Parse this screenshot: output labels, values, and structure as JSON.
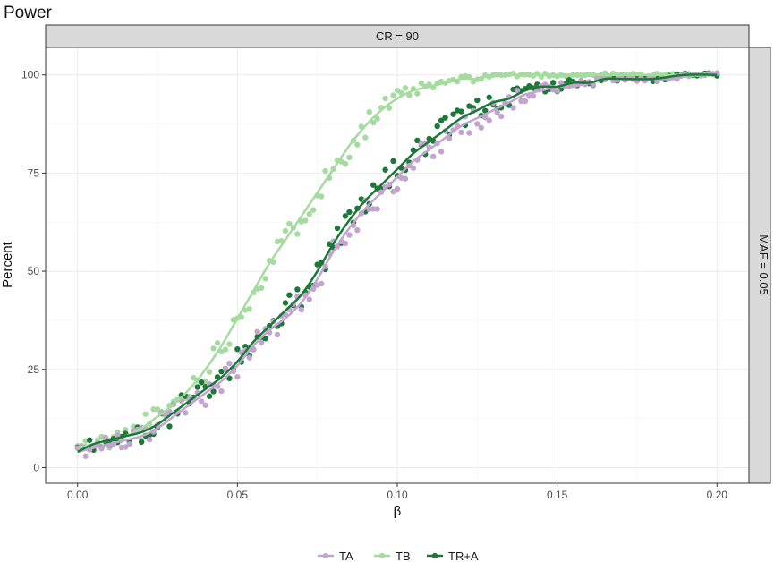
{
  "chart_data": {
    "type": "scatter",
    "title": "Power",
    "facet_top": "CR = 90",
    "facet_right": "MAF = 0.05",
    "xlabel": "β",
    "ylabel": "Percent",
    "xlim": [
      -0.01,
      0.21
    ],
    "ylim": [
      -4,
      107
    ],
    "x_ticks": [
      0.0,
      0.05,
      0.1,
      0.15,
      0.2
    ],
    "x_tick_labels": [
      "0.00",
      "0.05",
      "0.10",
      "0.15",
      "0.20"
    ],
    "y_ticks": [
      0,
      25,
      50,
      75,
      100
    ],
    "y_tick_labels": [
      "0",
      "25",
      "50",
      "75",
      "100"
    ],
    "grid": true,
    "legend_position": "bottom",
    "series": [
      {
        "name": "TA",
        "color": "#c2a5cf",
        "points": [
          [
            0.0,
            4
          ],
          [
            0.005,
            5
          ],
          [
            0.01,
            6
          ],
          [
            0.015,
            7
          ],
          [
            0.02,
            8
          ],
          [
            0.025,
            10
          ],
          [
            0.03,
            13
          ],
          [
            0.035,
            16
          ],
          [
            0.04,
            19
          ],
          [
            0.045,
            22
          ],
          [
            0.05,
            26
          ],
          [
            0.055,
            31
          ],
          [
            0.06,
            35
          ],
          [
            0.065,
            38
          ],
          [
            0.07,
            42
          ],
          [
            0.075,
            48
          ],
          [
            0.08,
            55
          ],
          [
            0.085,
            61
          ],
          [
            0.09,
            66
          ],
          [
            0.095,
            70
          ],
          [
            0.1,
            74
          ],
          [
            0.105,
            78
          ],
          [
            0.11,
            81
          ],
          [
            0.115,
            84
          ],
          [
            0.12,
            87
          ],
          [
            0.125,
            89
          ],
          [
            0.13,
            91
          ],
          [
            0.135,
            93
          ],
          [
            0.14,
            95
          ],
          [
            0.145,
            96
          ],
          [
            0.15,
            97
          ],
          [
            0.155,
            97
          ],
          [
            0.16,
            98
          ],
          [
            0.165,
            99
          ],
          [
            0.17,
            99
          ],
          [
            0.175,
            99
          ],
          [
            0.18,
            99
          ],
          [
            0.185,
            99
          ],
          [
            0.19,
            100
          ],
          [
            0.195,
            100
          ],
          [
            0.2,
            100
          ]
        ]
      },
      {
        "name": "TB",
        "color": "#a6dba0",
        "points": [
          [
            0.0,
            5
          ],
          [
            0.005,
            6
          ],
          [
            0.01,
            7
          ],
          [
            0.015,
            8
          ],
          [
            0.02,
            10
          ],
          [
            0.025,
            13
          ],
          [
            0.03,
            16
          ],
          [
            0.035,
            20
          ],
          [
            0.04,
            25
          ],
          [
            0.045,
            31
          ],
          [
            0.05,
            38
          ],
          [
            0.055,
            45
          ],
          [
            0.06,
            52
          ],
          [
            0.065,
            58
          ],
          [
            0.07,
            64
          ],
          [
            0.075,
            70
          ],
          [
            0.08,
            76
          ],
          [
            0.085,
            82
          ],
          [
            0.09,
            87
          ],
          [
            0.095,
            91
          ],
          [
            0.1,
            94
          ],
          [
            0.105,
            96
          ],
          [
            0.11,
            97
          ],
          [
            0.115,
            98
          ],
          [
            0.12,
            99
          ],
          [
            0.125,
            99
          ],
          [
            0.13,
            100
          ],
          [
            0.135,
            100
          ],
          [
            0.14,
            100
          ],
          [
            0.15,
            100
          ],
          [
            0.16,
            100
          ],
          [
            0.17,
            100
          ],
          [
            0.18,
            100
          ],
          [
            0.19,
            100
          ],
          [
            0.2,
            100
          ]
        ]
      },
      {
        "name": "TR+A",
        "color": "#1b7837",
        "points": [
          [
            0.0,
            4
          ],
          [
            0.005,
            6
          ],
          [
            0.01,
            7
          ],
          [
            0.015,
            8
          ],
          [
            0.02,
            9
          ],
          [
            0.025,
            11
          ],
          [
            0.03,
            14
          ],
          [
            0.035,
            17
          ],
          [
            0.04,
            20
          ],
          [
            0.045,
            23
          ],
          [
            0.05,
            27
          ],
          [
            0.055,
            32
          ],
          [
            0.06,
            36
          ],
          [
            0.065,
            40
          ],
          [
            0.07,
            44
          ],
          [
            0.075,
            50
          ],
          [
            0.08,
            57
          ],
          [
            0.085,
            63
          ],
          [
            0.09,
            68
          ],
          [
            0.095,
            72
          ],
          [
            0.1,
            76
          ],
          [
            0.105,
            80
          ],
          [
            0.11,
            83
          ],
          [
            0.115,
            86
          ],
          [
            0.12,
            89
          ],
          [
            0.125,
            91
          ],
          [
            0.13,
            93
          ],
          [
            0.135,
            94
          ],
          [
            0.14,
            96
          ],
          [
            0.145,
            97
          ],
          [
            0.15,
            97
          ],
          [
            0.155,
            98
          ],
          [
            0.16,
            98
          ],
          [
            0.165,
            99
          ],
          [
            0.17,
            99
          ],
          [
            0.18,
            99
          ],
          [
            0.19,
            100
          ],
          [
            0.2,
            100
          ]
        ]
      }
    ]
  }
}
